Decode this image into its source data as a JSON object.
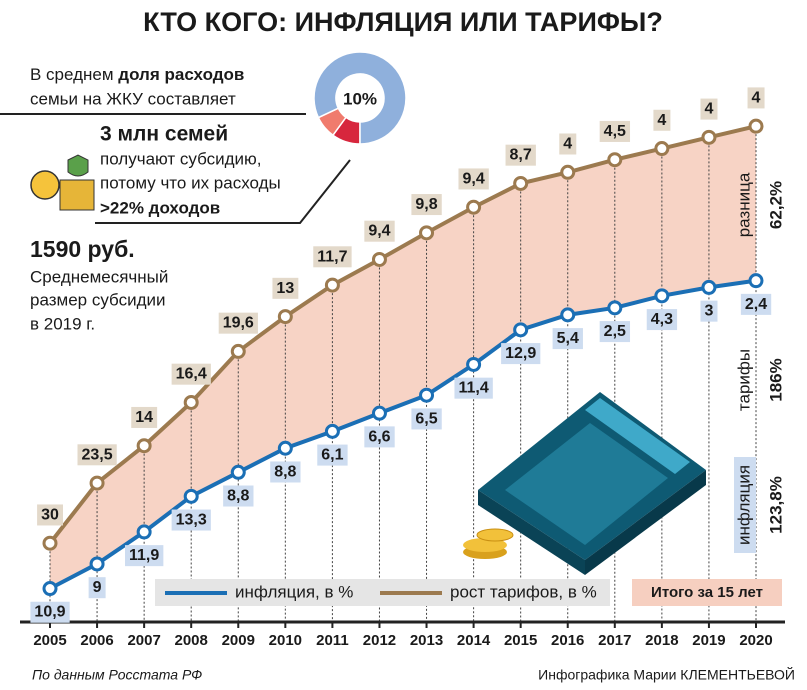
{
  "chart_data": {
    "type": "line",
    "title": "КТО КОГО: ИНФЛЯЦИЯ ИЛИ ТАРИФЫ?",
    "categories": [
      "2005",
      "2006",
      "2007",
      "2008",
      "2009",
      "2010",
      "2011",
      "2012",
      "2013",
      "2014",
      "2015",
      "2016",
      "2017",
      "2018",
      "2019",
      "2020"
    ],
    "series": [
      {
        "name": "инфляция, в %",
        "color": "#1b6fb5",
        "values": [
          10.9,
          9,
          11.9,
          13.3,
          8.8,
          8.8,
          6.1,
          6.6,
          6.5,
          11.4,
          12.9,
          5.4,
          2.5,
          4.3,
          3,
          2.4
        ],
        "value_labels": [
          "10,9",
          "9",
          "11,9",
          "13,3",
          "8,8",
          "8,8",
          "6,1",
          "6,6",
          "6,5",
          "11,4",
          "12,9",
          "5,4",
          "2,5",
          "4,3",
          "3",
          "2,4"
        ]
      },
      {
        "name": "рост тарифов, в %",
        "color": "#9c7a4f",
        "values": [
          30,
          23.5,
          14,
          16.4,
          19.6,
          13,
          11.7,
          9.4,
          9.8,
          9.4,
          8.7,
          4,
          4.5,
          4,
          4,
          4
        ],
        "value_labels": [
          "30",
          "23,5",
          "14",
          "16,4",
          "19,6",
          "13",
          "11,7",
          "9,4",
          "9,8",
          "9,4",
          "8,7",
          "4",
          "4,5",
          "4",
          "4",
          "4"
        ]
      }
    ],
    "share": {
      "text": [
        "В среднем ",
        "доля расходов",
        "семьи на ЖКУ составляет"
      ],
      "value": 10,
      "label": "10%"
    },
    "subsidy_families": [
      "3 млн семей",
      "получают субсидию,",
      "потому что их расходы",
      ">22% доходов"
    ],
    "subsidy_amount": [
      "1590 руб.",
      "Среднемесячный",
      "размер субсидии",
      "в 2019 г."
    ],
    "totals_title": "Итого за 15 лет",
    "totals": [
      {
        "name": "разница",
        "label": "62,2%"
      },
      {
        "name": "тарифы",
        "label": "186%"
      },
      {
        "name": "инфляция",
        "label": "123,8%"
      }
    ],
    "source": "По данным Росстата РФ",
    "credit": "Инфографика Марии КЛЕМЕНТЬЕВОЙ"
  }
}
